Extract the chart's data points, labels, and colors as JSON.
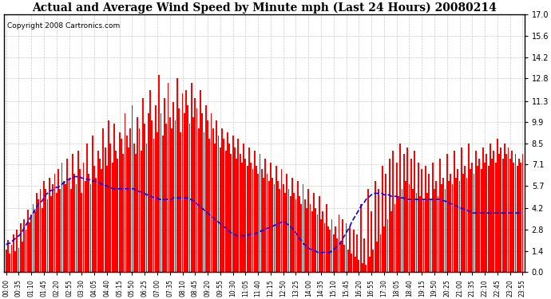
{
  "title": "Actual and Average Wind Speed by Minute mph (Last 24 Hours) 20080214",
  "copyright": "Copyright 2008 Cartronics.com",
  "yticks": [
    0.0,
    1.4,
    2.8,
    4.2,
    5.7,
    7.1,
    8.5,
    9.9,
    11.3,
    12.8,
    14.2,
    15.6,
    17.0
  ],
  "ylim": [
    0.0,
    17.0
  ],
  "bar_color": "#FF0000",
  "line_color": "#0000FF",
  "bg_color": "#FFFFFF",
  "grid_color": "#BBBBBB",
  "title_fontsize": 10,
  "copyright_fontsize": 6.5,
  "n_minutes": 288,
  "tick_step": 7,
  "avg_wind": [
    1.8,
    1.9,
    1.9,
    2.0,
    2.1,
    2.2,
    2.3,
    2.4,
    2.5,
    2.7,
    2.9,
    3.1,
    3.3,
    3.5,
    3.7,
    3.9,
    4.1,
    4.3,
    4.5,
    4.6,
    4.7,
    4.9,
    5.1,
    5.2,
    5.3,
    5.4,
    5.4,
    5.5,
    5.6,
    5.6,
    5.7,
    5.8,
    5.9,
    6.0,
    6.1,
    6.1,
    6.2,
    6.2,
    6.3,
    6.3,
    6.3,
    6.3,
    6.2,
    6.2,
    6.2,
    6.1,
    6.1,
    6.1,
    6.0,
    6.0,
    6.0,
    5.9,
    5.9,
    5.8,
    5.8,
    5.7,
    5.7,
    5.6,
    5.6,
    5.5,
    5.5,
    5.5,
    5.5,
    5.5,
    5.5,
    5.5,
    5.5,
    5.5,
    5.5,
    5.5,
    5.5,
    5.5,
    5.4,
    5.4,
    5.3,
    5.3,
    5.2,
    5.2,
    5.1,
    5.1,
    5.0,
    5.0,
    4.9,
    4.9,
    4.9,
    4.8,
    4.8,
    4.8,
    4.8,
    4.8,
    4.8,
    4.8,
    4.8,
    4.9,
    4.9,
    4.9,
    4.9,
    4.9,
    4.9,
    4.9,
    4.9,
    4.9,
    4.8,
    4.8,
    4.7,
    4.6,
    4.5,
    4.4,
    4.3,
    4.2,
    4.1,
    4.0,
    3.9,
    3.8,
    3.7,
    3.6,
    3.5,
    3.4,
    3.3,
    3.2,
    3.1,
    3.0,
    2.9,
    2.8,
    2.7,
    2.6,
    2.5,
    2.5,
    2.4,
    2.4,
    2.4,
    2.4,
    2.4,
    2.4,
    2.4,
    2.5,
    2.5,
    2.5,
    2.5,
    2.6,
    2.6,
    2.7,
    2.7,
    2.8,
    2.8,
    2.9,
    2.9,
    3.0,
    3.0,
    3.1,
    3.1,
    3.2,
    3.2,
    3.3,
    3.3,
    3.3,
    3.2,
    3.1,
    3.0,
    2.9,
    2.7,
    2.6,
    2.4,
    2.2,
    2.1,
    1.9,
    1.8,
    1.7,
    1.6,
    1.5,
    1.5,
    1.4,
    1.4,
    1.3,
    1.3,
    1.3,
    1.3,
    1.3,
    1.3,
    1.3,
    1.3,
    1.4,
    1.5,
    1.6,
    1.7,
    1.8,
    2.0,
    2.2,
    2.4,
    2.6,
    2.8,
    3.0,
    3.3,
    3.5,
    3.7,
    3.9,
    4.1,
    4.3,
    4.5,
    4.6,
    4.8,
    4.9,
    5.0,
    5.1,
    5.2,
    5.2,
    5.2,
    5.2,
    5.2,
    5.2,
    5.1,
    5.1,
    5.1,
    5.1,
    5.0,
    5.0,
    5.0,
    5.0,
    4.9,
    4.9,
    4.9,
    4.9,
    4.8,
    4.8,
    4.8,
    4.8,
    4.8,
    4.8,
    4.8,
    4.8,
    4.8,
    4.8,
    4.8,
    4.8,
    4.8,
    4.8,
    4.8,
    4.8,
    4.8,
    4.8,
    4.8,
    4.8,
    4.8,
    4.7,
    4.7,
    4.6,
    4.6,
    4.5,
    4.5,
    4.4,
    4.4,
    4.3,
    4.3,
    4.2,
    4.2,
    4.1,
    4.1,
    4.0,
    4.0,
    3.9,
    3.9,
    3.9,
    3.9,
    3.9,
    3.9,
    3.9,
    3.9,
    3.9,
    3.9,
    3.9,
    3.9,
    3.9,
    3.9,
    3.9,
    3.9,
    3.9,
    3.9,
    3.9,
    3.9,
    3.9,
    3.9,
    3.9,
    3.9,
    3.9,
    3.9,
    3.9,
    3.9,
    3.9
  ],
  "actual_wind": [
    1.5,
    2.1,
    1.2,
    1.8,
    2.5,
    1.4,
    2.8,
    1.6,
    3.2,
    2.0,
    3.5,
    2.8,
    4.1,
    3.3,
    3.8,
    4.5,
    4.0,
    5.2,
    4.8,
    5.5,
    4.2,
    6.0,
    5.5,
    4.8,
    6.2,
    5.0,
    5.8,
    6.5,
    5.2,
    6.8,
    5.5,
    7.2,
    6.0,
    5.8,
    7.5,
    6.2,
    5.5,
    7.8,
    6.5,
    5.8,
    8.0,
    6.8,
    5.2,
    7.2,
    6.0,
    8.5,
    6.5,
    5.8,
    9.0,
    7.0,
    6.2,
    8.0,
    7.5,
    6.8,
    9.5,
    8.2,
    7.0,
    10.0,
    8.5,
    7.2,
    9.8,
    8.0,
    7.5,
    9.2,
    8.8,
    7.8,
    10.5,
    9.0,
    8.2,
    9.5,
    11.0,
    8.5,
    7.8,
    10.2,
    9.5,
    8.0,
    11.5,
    9.8,
    8.5,
    10.5,
    12.0,
    10.0,
    8.8,
    11.0,
    9.2,
    13.0,
    10.5,
    9.0,
    11.5,
    9.8,
    12.5,
    10.2,
    9.5,
    11.2,
    10.0,
    12.8,
    10.8,
    9.2,
    11.8,
    10.5,
    12.0,
    11.0,
    9.8,
    12.5,
    10.2,
    11.5,
    10.8,
    9.5,
    12.0,
    10.5,
    9.2,
    11.0,
    10.0,
    8.8,
    10.5,
    9.5,
    8.5,
    10.0,
    9.0,
    8.2,
    9.5,
    8.8,
    8.0,
    9.2,
    8.5,
    7.8,
    9.0,
    8.2,
    7.5,
    8.8,
    7.8,
    7.2,
    8.5,
    7.5,
    7.0,
    8.2,
    7.2,
    6.8,
    8.0,
    7.0,
    6.5,
    7.8,
    6.8,
    6.2,
    7.5,
    6.5,
    6.0,
    7.2,
    6.2,
    5.8,
    7.0,
    6.0,
    5.5,
    6.8,
    5.8,
    5.2,
    6.5,
    5.5,
    5.0,
    6.2,
    5.2,
    4.8,
    6.0,
    5.0,
    4.5,
    5.8,
    4.8,
    4.2,
    5.5,
    4.5,
    4.0,
    5.2,
    4.2,
    3.8,
    5.0,
    3.5,
    4.0,
    3.2,
    4.5,
    3.0,
    2.8,
    3.5,
    2.5,
    3.0,
    2.2,
    3.8,
    2.0,
    3.5,
    1.8,
    3.2,
    1.5,
    3.0,
    1.2,
    2.8,
    1.0,
    2.5,
    0.8,
    4.5,
    0.6,
    2.2,
    0.5,
    5.5,
    1.0,
    4.0,
    1.5,
    6.0,
    2.0,
    5.5,
    2.5,
    7.0,
    3.0,
    6.5,
    3.5,
    7.5,
    4.0,
    8.0,
    4.5,
    7.2,
    5.0,
    8.5,
    5.5,
    7.8,
    6.0,
    8.2,
    5.8,
    7.5,
    5.5,
    8.0,
    5.2,
    7.2,
    5.0,
    6.8,
    4.8,
    7.0,
    5.2,
    6.5,
    4.8,
    7.2,
    5.5,
    6.0,
    5.0,
    7.5,
    5.8,
    6.2,
    5.5,
    7.8,
    6.0,
    6.5,
    5.8,
    8.0,
    6.2,
    6.8,
    6.0,
    8.2,
    6.5,
    7.0,
    6.2,
    8.5,
    6.8,
    7.2,
    6.5,
    8.0,
    7.0,
    7.5,
    6.8,
    8.2,
    7.2,
    7.8,
    7.0,
    8.5,
    7.5,
    8.0,
    7.2,
    8.8,
    7.8,
    8.2,
    7.5,
    8.5,
    7.8,
    8.2,
    7.5,
    8.0,
    7.2,
    7.8,
    7.0,
    7.5,
    7.2,
    7.8
  ]
}
